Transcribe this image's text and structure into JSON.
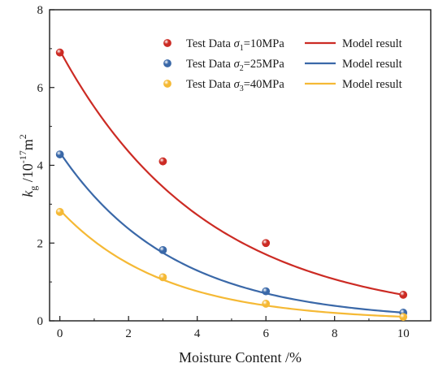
{
  "chart_data": {
    "type": "scatter",
    "xlabel": "Moisture Content /%",
    "ylabel": "k_g /10^-17 m^2",
    "ylabel_parts": {
      "symbol": "k",
      "subscript": "g",
      "unit_base": " /10",
      "unit_exp": "-17",
      "unit_mid": "m",
      "unit_exp2": "2"
    },
    "xlim": [
      -0.3,
      10.8
    ],
    "ylim": [
      0,
      8
    ],
    "xticks": [
      0,
      2,
      4,
      6,
      8,
      10
    ],
    "yticks": [
      0,
      2,
      4,
      6,
      8
    ],
    "xtick_labels": [
      "0",
      "2",
      "4",
      "6",
      "8",
      "10"
    ],
    "ytick_labels": [
      "0",
      "2",
      "4",
      "6",
      "8"
    ],
    "legend_position": "top-right",
    "grid": false,
    "series": [
      {
        "name": "Test Data σ1=10MPa",
        "name_parts": {
          "prefix": "Test Data ",
          "sym": "σ",
          "sub": "1",
          "suffix": "=10MPa"
        },
        "model_name": "Model result",
        "color": "#cc2b24",
        "x": [
          0,
          3,
          6,
          10
        ],
        "values": [
          6.9,
          4.1,
          2.0,
          0.67
        ],
        "model": {
          "a": 6.95,
          "b": 0.234
        }
      },
      {
        "name": "Test Data σ2=25MPa",
        "name_parts": {
          "prefix": "Test Data ",
          "sym": "σ",
          "sub": "2",
          "suffix": "=25MPa"
        },
        "model_name": "Model result",
        "color": "#3a68a8",
        "x": [
          0,
          3,
          6,
          10
        ],
        "values": [
          4.28,
          1.82,
          0.76,
          0.21
        ],
        "model": {
          "a": 4.33,
          "b": 0.302
        }
      },
      {
        "name": "Test Data σ3=40MPa",
        "name_parts": {
          "prefix": "Test Data ",
          "sym": "σ",
          "sub": "3",
          "suffix": "=40MPa"
        },
        "model_name": "Model result",
        "color": "#f5b935",
        "x": [
          0,
          3,
          6,
          10
        ],
        "values": [
          2.8,
          1.12,
          0.44,
          0.1
        ],
        "model": {
          "a": 2.85,
          "b": 0.33
        }
      }
    ]
  }
}
